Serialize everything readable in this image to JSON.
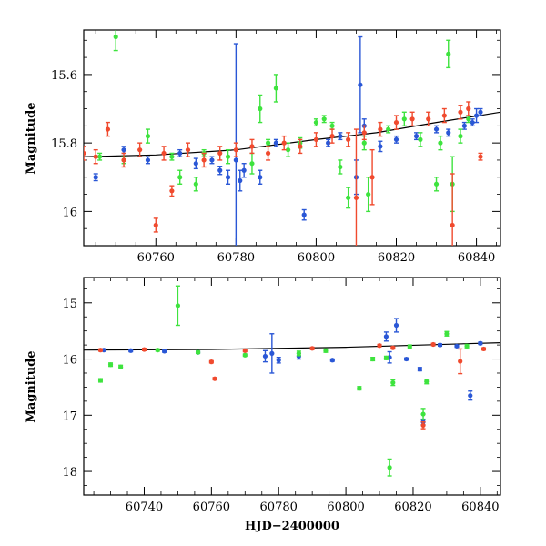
{
  "chart_data": [
    {
      "type": "scatter",
      "xlabel": "",
      "ylabel": "Magnitude",
      "xlim": [
        60742,
        60846
      ],
      "ylim": [
        16.1,
        15.47
      ],
      "y_inverted": true,
      "x_ticks": [
        60760,
        60780,
        60800,
        60820,
        60840
      ],
      "x_tick_labels": [
        "60760",
        "60780",
        "60800",
        "60820",
        "60840"
      ],
      "y_ticks": [
        15.6,
        15.8,
        16.0
      ],
      "y_tick_labels": [
        "15.6",
        "15.8",
        "16"
      ],
      "trend_line": {
        "color": "#000000",
        "x": [
          60742,
          60760,
          60780,
          60800,
          60815,
          60830,
          60846
        ],
        "y": [
          15.84,
          15.835,
          15.82,
          15.79,
          15.77,
          15.74,
          15.71
        ]
      },
      "series": [
        {
          "color": "#2a57d6",
          "points": [
            [
              60745,
              15.9,
              0.01
            ],
            [
              60752,
              15.82,
              0.01
            ],
            [
              60758,
              15.85,
              0.01
            ],
            [
              60766,
              15.83,
              0.01
            ],
            [
              60770,
              15.86,
              0.015
            ],
            [
              60774,
              15.85,
              0.01
            ],
            [
              60776,
              15.88,
              0.012
            ],
            [
              60778,
              15.9,
              0.02
            ],
            [
              60780,
              15.85,
              0.34
            ],
            [
              60781,
              15.91,
              0.03
            ],
            [
              60782,
              15.88,
              0.02
            ],
            [
              60786,
              15.9,
              0.02
            ],
            [
              60790,
              15.8,
              0.01
            ],
            [
              60797,
              16.01,
              0.015
            ],
            [
              60803,
              15.8,
              0.01
            ],
            [
              60806,
              15.78,
              0.01
            ],
            [
              60810,
              15.9,
              0.05
            ],
            [
              60811,
              15.63,
              0.14
            ],
            [
              60812,
              15.75,
              0.02
            ],
            [
              60816,
              15.81,
              0.015
            ],
            [
              60820,
              15.79,
              0.01
            ],
            [
              60825,
              15.78,
              0.01
            ],
            [
              60830,
              15.76,
              0.01
            ],
            [
              60833,
              15.77,
              0.01
            ],
            [
              60837,
              15.75,
              0.01
            ],
            [
              60839,
              15.74,
              0.01
            ],
            [
              60840,
              15.72,
              0.02
            ],
            [
              60841,
              15.71,
              0.01
            ]
          ]
        },
        {
          "color": "#3ee33e",
          "points": [
            [
              60746,
              15.84,
              0.01
            ],
            [
              60750,
              15.49,
              0.04
            ],
            [
              60752,
              15.85,
              0.01
            ],
            [
              60758,
              15.78,
              0.02
            ],
            [
              60764,
              15.84,
              0.01
            ],
            [
              60766,
              15.9,
              0.02
            ],
            [
              60770,
              15.92,
              0.02
            ],
            [
              60772,
              15.83,
              0.01
            ],
            [
              60778,
              15.84,
              0.02
            ],
            [
              60784,
              15.86,
              0.03
            ],
            [
              60786,
              15.7,
              0.04
            ],
            [
              60788,
              15.8,
              0.01
            ],
            [
              60790,
              15.64,
              0.04
            ],
            [
              60793,
              15.82,
              0.02
            ],
            [
              60796,
              15.8,
              0.015
            ],
            [
              60800,
              15.74,
              0.01
            ],
            [
              60802,
              15.73,
              0.01
            ],
            [
              60804,
              15.75,
              0.01
            ],
            [
              60806,
              15.87,
              0.02
            ],
            [
              60808,
              15.96,
              0.03
            ],
            [
              60812,
              15.8,
              0.02
            ],
            [
              60813,
              15.95,
              0.05
            ],
            [
              60818,
              15.76,
              0.01
            ],
            [
              60822,
              15.73,
              0.02
            ],
            [
              60826,
              15.79,
              0.02
            ],
            [
              60830,
              15.92,
              0.02
            ],
            [
              60831,
              15.8,
              0.02
            ],
            [
              60833,
              15.54,
              0.04
            ],
            [
              60834,
              15.92,
              0.08
            ],
            [
              60836,
              15.78,
              0.02
            ],
            [
              60838,
              15.73,
              0.01
            ]
          ]
        },
        {
          "color": "#f04a2e",
          "points": [
            [
              60742,
              15.83,
              0.02
            ],
            [
              60745,
              15.84,
              0.02
            ],
            [
              60748,
              15.76,
              0.02
            ],
            [
              60752,
              15.85,
              0.02
            ],
            [
              60756,
              15.82,
              0.02
            ],
            [
              60760,
              16.04,
              0.02
            ],
            [
              60762,
              15.83,
              0.02
            ],
            [
              60764,
              15.94,
              0.015
            ],
            [
              60768,
              15.82,
              0.02
            ],
            [
              60772,
              15.85,
              0.02
            ],
            [
              60776,
              15.83,
              0.02
            ],
            [
              60780,
              15.82,
              0.02
            ],
            [
              60784,
              15.81,
              0.02
            ],
            [
              60788,
              15.83,
              0.02
            ],
            [
              60792,
              15.8,
              0.02
            ],
            [
              60796,
              15.81,
              0.02
            ],
            [
              60800,
              15.79,
              0.02
            ],
            [
              60804,
              15.78,
              0.02
            ],
            [
              60808,
              15.79,
              0.02
            ],
            [
              60810,
              15.96,
              0.2
            ],
            [
              60812,
              15.77,
              0.02
            ],
            [
              60814,
              15.9,
              0.08
            ],
            [
              60816,
              15.76,
              0.02
            ],
            [
              60820,
              15.74,
              0.02
            ],
            [
              60824,
              15.73,
              0.02
            ],
            [
              60828,
              15.73,
              0.02
            ],
            [
              60832,
              15.72,
              0.02
            ],
            [
              60834,
              16.04,
              0.15
            ],
            [
              60836,
              15.71,
              0.02
            ],
            [
              60838,
              15.7,
              0.02
            ],
            [
              60841,
              15.84,
              0.01
            ]
          ]
        }
      ]
    },
    {
      "type": "scatter",
      "xlabel": "HJD−2400000",
      "ylabel": "Magnitude",
      "xlim": [
        60722,
        60846
      ],
      "ylim": [
        18.42,
        14.55
      ],
      "y_inverted": true,
      "x_ticks": [
        60740,
        60760,
        60780,
        60800,
        60820,
        60840
      ],
      "x_tick_labels": [
        "60740",
        "60760",
        "60780",
        "60800",
        "60820",
        "60840"
      ],
      "y_ticks": [
        15,
        16,
        17,
        18
      ],
      "y_tick_labels": [
        "15",
        "16",
        "17",
        "18"
      ],
      "trend_line": {
        "color": "#000000",
        "x": [
          60722,
          60760,
          60800,
          60846
        ],
        "y": [
          15.84,
          15.83,
          15.79,
          15.71
        ]
      },
      "series": [
        {
          "color": "#2a57d6",
          "points": [
            [
              60728,
              15.84,
              0.02
            ],
            [
              60736,
              15.85,
              0.02
            ],
            [
              60746,
              15.86,
              0.02
            ],
            [
              60756,
              15.88,
              0.02
            ],
            [
              60776,
              15.95,
              0.1
            ],
            [
              60778,
              15.9,
              0.35
            ],
            [
              60780,
              16.02,
              0.05
            ],
            [
              60786,
              15.95,
              0.05
            ],
            [
              60796,
              16.02,
              0.02
            ],
            [
              60812,
              15.6,
              0.08
            ],
            [
              60813,
              15.97,
              0.1
            ],
            [
              60815,
              15.4,
              0.12
            ],
            [
              60818,
              16.0,
              0.02
            ],
            [
              60822,
              16.18,
              0.03
            ],
            [
              60823,
              17.12,
              0.05
            ],
            [
              60828,
              15.75,
              0.02
            ],
            [
              60833,
              15.77,
              0.02
            ],
            [
              60837,
              16.65,
              0.08
            ],
            [
              60840,
              15.72,
              0.02
            ]
          ]
        },
        {
          "color": "#3ee33e",
          "points": [
            [
              60727,
              16.38,
              0.03
            ],
            [
              60730,
              16.1,
              0.03
            ],
            [
              60733,
              16.14,
              0.03
            ],
            [
              60744,
              15.84,
              0.02
            ],
            [
              60750,
              15.05,
              0.35
            ],
            [
              60756,
              15.88,
              0.02
            ],
            [
              60770,
              15.93,
              0.02
            ],
            [
              60786,
              15.9,
              0.04
            ],
            [
              60794,
              15.85,
              0.03
            ],
            [
              60804,
              16.52,
              0.03
            ],
            [
              60808,
              16.0,
              0.03
            ],
            [
              60812,
              15.98,
              0.03
            ],
            [
              60813,
              17.93,
              0.15
            ],
            [
              60814,
              16.42,
              0.05
            ],
            [
              60819,
              15.78,
              0.03
            ],
            [
              60823,
              16.98,
              0.1
            ],
            [
              60824,
              16.4,
              0.04
            ],
            [
              60830,
              15.55,
              0.04
            ],
            [
              60836,
              15.77,
              0.03
            ]
          ]
        },
        {
          "color": "#f04a2e",
          "points": [
            [
              60727,
              15.84,
              0.02
            ],
            [
              60740,
              15.83,
              0.02
            ],
            [
              60760,
              16.05,
              0.02
            ],
            [
              60761,
              16.35,
              0.02
            ],
            [
              60770,
              15.85,
              0.02
            ],
            [
              60790,
              15.81,
              0.02
            ],
            [
              60810,
              15.76,
              0.02
            ],
            [
              60814,
              15.8,
              0.02
            ],
            [
              60823,
              17.18,
              0.06
            ],
            [
              60826,
              15.74,
              0.02
            ],
            [
              60834,
              16.04,
              0.22
            ],
            [
              60841,
              15.82,
              0.02
            ]
          ]
        }
      ]
    }
  ]
}
